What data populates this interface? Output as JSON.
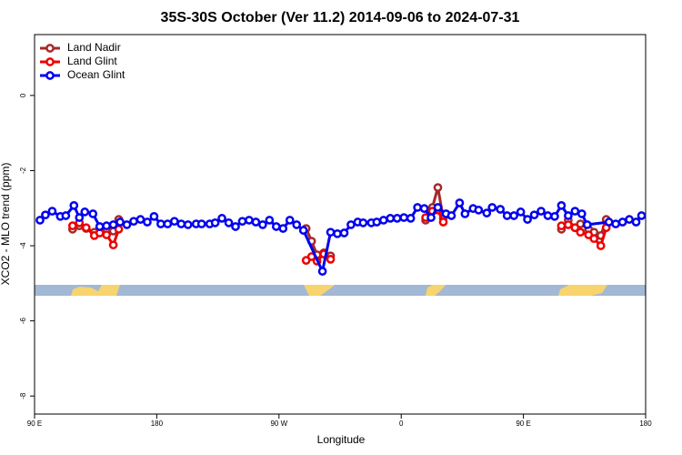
{
  "chart_data": {
    "type": "line",
    "title": "35S-30S October (Ver 11.2)   2014-09-06 to 2024-07-31",
    "x_label": "Longitude",
    "y_label": "XCO2 - MLO trend (ppm)",
    "xlim": [
      90,
      540
    ],
    "ylim": [
      -8.48,
      1.62
    ],
    "xticks": [
      {
        "value": 90,
        "label": "90 E"
      },
      180,
      {
        "value": 270,
        "label": "90 W"
      },
      {
        "value": 360,
        "label": "0"
      },
      {
        "value": 450,
        "label": "90 E"
      },
      {
        "value": 540,
        "label": "180"
      }
    ],
    "yticks": [
      0,
      -2,
      -4,
      -6,
      -8
    ],
    "legend": "top-left",
    "series": [
      {
        "name": "Land Nadir",
        "color": "#a52a2a",
        "x": [
          118,
          123,
          128,
          134,
          138,
          143,
          148,
          152,
          null,
          290,
          294,
          298,
          303,
          308,
          null,
          378,
          383,
          387,
          391,
          null,
          478,
          483,
          488,
          492,
          498,
          502,
          507,
          511
        ],
        "values": [
          -3.56,
          -3.47,
          -3.54,
          -3.64,
          -3.52,
          -3.56,
          -3.61,
          -3.3,
          null,
          -3.54,
          -3.88,
          -4.24,
          -4.19,
          -4.27,
          null,
          -3.32,
          -2.98,
          -2.45,
          -3.27,
          null,
          -3.56,
          -3.32,
          -3.52,
          -3.42,
          -3.56,
          -3.64,
          -3.73,
          -3.3
        ]
      },
      {
        "name": "Land Glint",
        "color": "#ee0000",
        "x": [
          118,
          123,
          128,
          134,
          138,
          143,
          148,
          152,
          null,
          290,
          294,
          298,
          303,
          308,
          null,
          378,
          383,
          387,
          391,
          null,
          478,
          483,
          488,
          492,
          498,
          502,
          507,
          511
        ],
        "values": [
          -3.47,
          -3.39,
          -3.52,
          -3.73,
          -3.66,
          -3.71,
          -3.98,
          -3.56,
          null,
          -4.39,
          -4.29,
          -4.41,
          -4.22,
          -4.36,
          null,
          -3.25,
          -3.08,
          -3.05,
          -3.37,
          null,
          -3.47,
          -3.44,
          -3.52,
          -3.64,
          -3.71,
          -3.81,
          -4.0,
          -3.52
        ]
      },
      {
        "name": "Ocean Glint",
        "color": "#0000ee",
        "x": [
          94,
          98,
          103,
          109,
          113,
          119,
          123,
          127,
          133,
          138,
          143,
          148,
          153,
          158,
          163,
          168,
          173,
          178,
          183,
          188,
          193,
          198,
          203,
          209,
          213,
          219,
          223,
          228,
          233,
          238,
          243,
          248,
          253,
          258,
          263,
          268,
          273,
          278,
          283,
          288,
          302,
          308,
          313,
          318,
          323,
          328,
          332,
          338,
          342,
          347,
          352,
          357,
          362,
          367,
          372,
          377,
          382,
          387,
          393,
          397,
          403,
          407,
          413,
          417,
          423,
          427,
          433,
          438,
          443,
          448,
          453,
          458,
          463,
          468,
          473,
          478,
          483,
          488,
          493,
          497,
          513,
          518,
          523,
          528,
          533,
          537
        ],
        "values": [
          -3.32,
          -3.18,
          -3.08,
          -3.22,
          -3.2,
          -2.93,
          -3.25,
          -3.1,
          -3.15,
          -3.49,
          -3.47,
          -3.44,
          -3.37,
          -3.44,
          -3.35,
          -3.3,
          -3.37,
          -3.22,
          -3.42,
          -3.42,
          -3.35,
          -3.42,
          -3.44,
          -3.42,
          -3.42,
          -3.42,
          -3.39,
          -3.27,
          -3.39,
          -3.49,
          -3.35,
          -3.32,
          -3.37,
          -3.44,
          -3.32,
          -3.49,
          -3.54,
          -3.32,
          -3.44,
          -3.59,
          -4.68,
          -3.64,
          -3.68,
          -3.66,
          -3.44,
          -3.37,
          -3.39,
          -3.39,
          -3.37,
          -3.32,
          -3.27,
          -3.27,
          -3.25,
          -3.27,
          -2.98,
          -3.01,
          -3.25,
          -2.98,
          -3.15,
          -3.2,
          -2.86,
          -3.15,
          -3.01,
          -3.05,
          -3.13,
          -2.98,
          -3.03,
          -3.2,
          -3.2,
          -3.1,
          -3.3,
          -3.18,
          -3.08,
          -3.2,
          -3.22,
          -2.93,
          -3.2,
          -3.08,
          -3.15,
          -3.44,
          -3.37,
          -3.42,
          -3.37,
          -3.3,
          -3.37,
          -3.2
        ]
      }
    ]
  }
}
